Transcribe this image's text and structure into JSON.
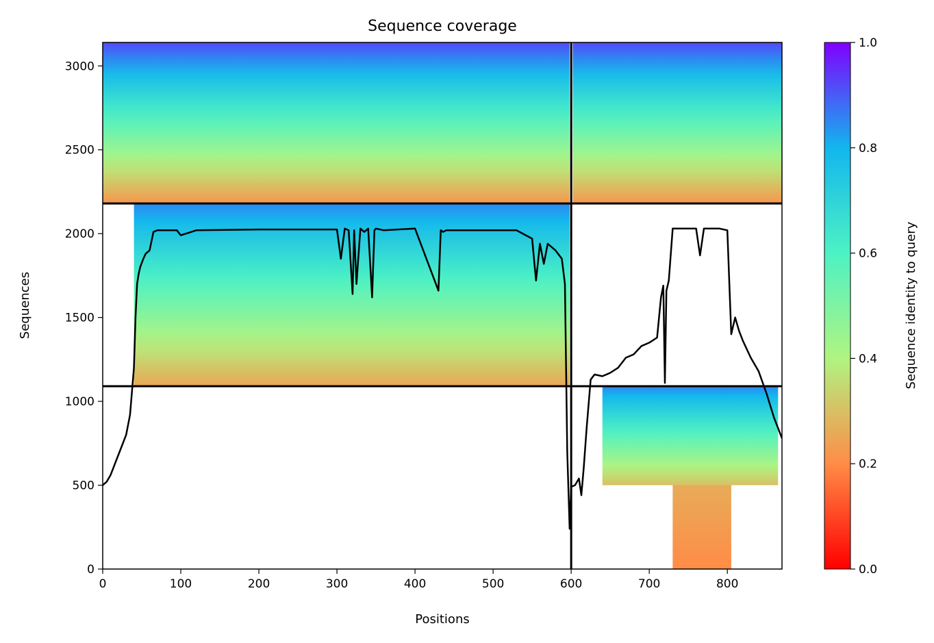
{
  "chart_data": {
    "type": "heatmap",
    "title": "Sequence coverage",
    "xlabel": "Positions",
    "ylabel": "Sequences",
    "xlim": [
      0,
      870
    ],
    "ylim": [
      0,
      3140
    ],
    "x_ticks": [
      0,
      100,
      200,
      300,
      400,
      500,
      600,
      700,
      800
    ],
    "y_ticks": [
      0,
      500,
      1000,
      1500,
      2000,
      2500,
      3000
    ],
    "grid": false,
    "colormap": "rainbow",
    "colorbar": {
      "label": "Sequence identity to query",
      "range": [
        0,
        1
      ],
      "ticks": [
        0.0,
        0.2,
        0.4,
        0.6,
        0.8,
        1.0
      ],
      "tick_labels": [
        "0.0",
        "0.2",
        "0.4",
        "0.6",
        "0.8",
        "1.0"
      ]
    },
    "boundaries": {
      "vertical_x": [
        600
      ],
      "horizontal_y": [
        1090,
        2180
      ]
    },
    "blocks": [
      {
        "x": [
          40,
          598
        ],
        "y": [
          1090,
          2180
        ],
        "identity": [
          0.25,
          0.85
        ]
      },
      {
        "x": [
          0,
          598
        ],
        "y": [
          2180,
          3140
        ],
        "identity": [
          0.22,
          0.92
        ]
      },
      {
        "x": [
          602,
          870
        ],
        "y": [
          2180,
          3140
        ],
        "identity": [
          0.22,
          0.92
        ]
      },
      {
        "x": [
          730,
          805
        ],
        "y": [
          0,
          500
        ],
        "identity": [
          0.2,
          0.26
        ]
      },
      {
        "x": [
          640,
          865
        ],
        "y": [
          500,
          1090
        ],
        "identity": [
          0.3,
          0.85
        ]
      }
    ],
    "coverage_line": {
      "x": [
        0,
        5,
        10,
        15,
        20,
        25,
        30,
        35,
        40,
        42,
        44,
        46,
        48,
        52,
        55,
        60,
        65,
        70,
        95,
        100,
        120,
        200,
        300,
        305,
        310,
        315,
        320,
        322,
        325,
        330,
        335,
        340,
        345,
        348,
        350,
        360,
        400,
        430,
        433,
        436,
        440,
        460,
        500,
        530,
        550,
        555,
        560,
        565,
        570,
        580,
        588,
        592,
        595,
        598,
        600,
        605,
        610,
        613,
        616,
        620,
        625,
        630,
        640,
        650,
        660,
        670,
        680,
        690,
        700,
        710,
        715,
        718,
        720,
        722,
        725,
        730,
        740,
        760,
        765,
        770,
        790,
        800,
        805,
        810,
        815,
        820,
        830,
        840,
        850,
        860,
        870
      ],
      "y": [
        500,
        520,
        560,
        620,
        680,
        740,
        800,
        920,
        1200,
        1500,
        1700,
        1760,
        1800,
        1850,
        1880,
        1900,
        2010,
        2020,
        2020,
        1990,
        2020,
        2025,
        2025,
        1850,
        2030,
        2020,
        1640,
        2020,
        1700,
        2030,
        2010,
        2030,
        1620,
        2020,
        2030,
        2020,
        2030,
        1660,
        2020,
        2010,
        2020,
        2020,
        2020,
        2020,
        1970,
        1720,
        1940,
        1820,
        1940,
        1900,
        1850,
        1700,
        700,
        240,
        490,
        500,
        540,
        440,
        600,
        850,
        1130,
        1160,
        1150,
        1170,
        1200,
        1260,
        1280,
        1330,
        1350,
        1380,
        1620,
        1690,
        1110,
        1660,
        1720,
        2030,
        2030,
        2030,
        1870,
        2030,
        2030,
        2020,
        1400,
        1500,
        1420,
        1360,
        1260,
        1180,
        1050,
        900,
        780
      ]
    }
  }
}
